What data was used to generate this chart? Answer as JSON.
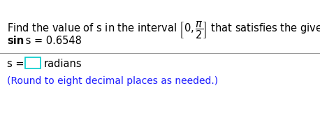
{
  "line1": "Find the value of s in the interval ",
  "line1_suffix": " that satisfies the given statement.",
  "line2_sin": "sin",
  "line2_rest": " s = 0.6548",
  "line3_prefix": "s = ",
  "line3_suffix": "  radians",
  "line4": "(Round to eight decimal places as needed.)",
  "background_color": "#ffffff",
  "text_color_black": "#000000",
  "text_color_blue": "#1a1aff",
  "divider_color": "#999999",
  "box_edge_color": "#00cccc",
  "fontsize_main": 10.5,
  "fontsize_small": 10.0,
  "fig_width": 4.58,
  "fig_height": 1.66,
  "dpi": 100
}
